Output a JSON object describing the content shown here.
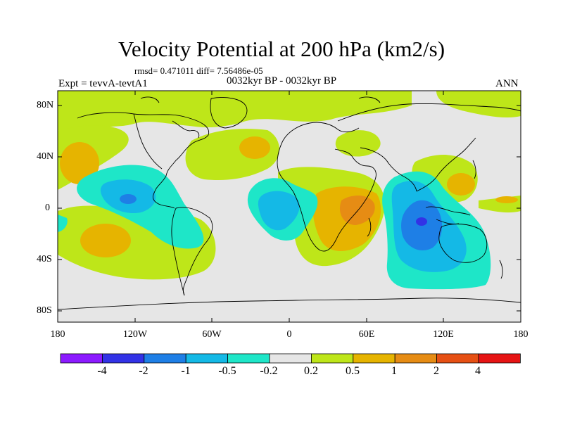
{
  "title": "Velocity Potential at 200 hPa (km2/s)",
  "stats": "rmsd= 0.471011 diff= 7.56486e-05",
  "experiment": "Expt = tevvA-tevtA1",
  "period": "0032kyr BP - 0032kyr BP",
  "season": "ANN",
  "y_ticks": [
    "80N",
    "40N",
    "0",
    "40S",
    "80S"
  ],
  "x_ticks": [
    "180",
    "120W",
    "60W",
    "0",
    "60E",
    "120E",
    "180"
  ],
  "colorbar": {
    "labels": [
      "-4",
      "-2",
      "-1",
      "-0.5",
      "-0.2",
      "0.2",
      "0.5",
      "1",
      "2",
      "4"
    ],
    "colors": [
      "#8c1aff",
      "#3232e6",
      "#1e7fe6",
      "#14b9e6",
      "#1ee6c8",
      "#e6e6e6",
      "#bee619",
      "#e6b400",
      "#e68c14",
      "#e65014",
      "#e61414"
    ]
  },
  "colors": {
    "neutral": "#e6e6e6",
    "pos_weak": "#bee619",
    "pos_mid": "#e6b400",
    "pos_strong": "#e68c14",
    "neg_weak": "#1ee6c8",
    "neg_mid": "#14b9e6",
    "neg_strong": "#1e7fe6",
    "neg_max": "#3232e6"
  }
}
